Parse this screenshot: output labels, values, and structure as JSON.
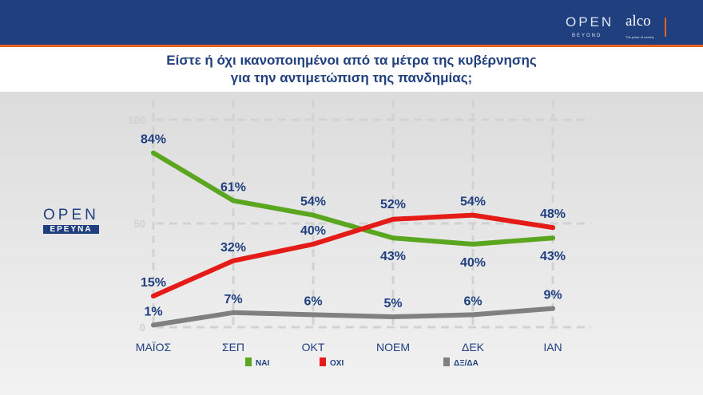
{
  "header": {
    "open_logo": "OPEN",
    "open_sub": "BEYOND",
    "alco_logo": "alco",
    "alco_tagline": "The pulse of society"
  },
  "side_logo": {
    "open": "OPEN",
    "erevna": "ΕΡΕΥΝΑ"
  },
  "chart_data": {
    "type": "line",
    "title": "Είστε ή όχι ικανοποιημένοι από τα μέτρα της κυβέρνησης για την αντιμετώπιση της πανδημίας;",
    "title_lines": [
      "Είστε ή όχι ικανοποιημένοι από τα μέτρα της κυβέρνησης",
      "για την αντιμετώπιση της πανδημίας;"
    ],
    "categories": [
      "ΜΑΪΟΣ",
      "ΣΕΠ",
      "ΟΚΤ",
      "ΝΟΕΜ",
      "ΔΕΚ",
      "ΙΑΝ"
    ],
    "ylim": [
      0,
      100
    ],
    "yticks": [
      "0",
      "50",
      "100"
    ],
    "grid": true,
    "legend_position": "bottom",
    "series": [
      {
        "name": "ΝΑΙ",
        "color": "#5aa61e",
        "values": [
          84,
          61,
          54,
          43,
          40,
          43
        ]
      },
      {
        "name": "ΟΧΙ",
        "color": "#e41b17",
        "values": [
          15,
          32,
          40,
          52,
          54,
          48
        ]
      },
      {
        "name": "ΔΞ/ΔΑ",
        "color": "#808080",
        "values": [
          1,
          7,
          6,
          5,
          6,
          9
        ]
      }
    ]
  }
}
